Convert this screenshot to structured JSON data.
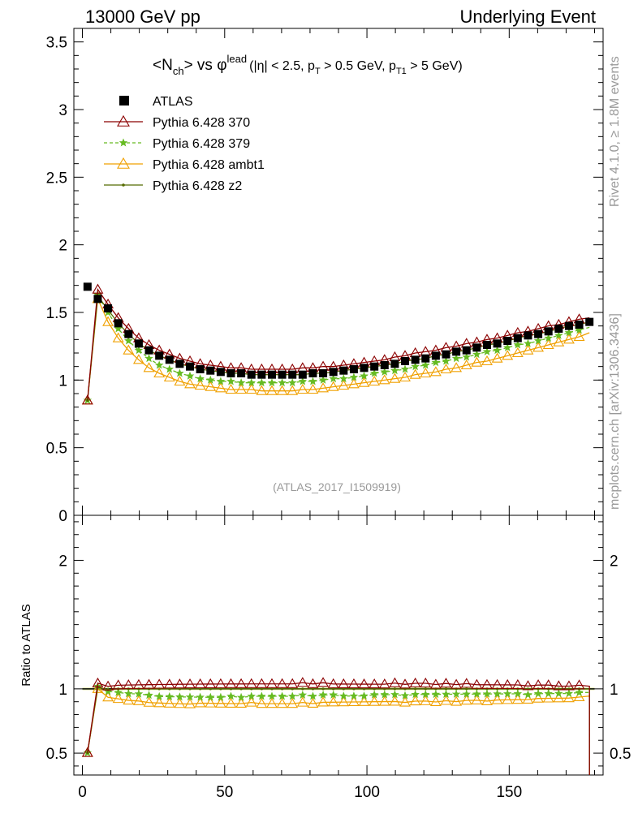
{
  "header": {
    "left": "13000 GeV pp",
    "right": "Underlying Event"
  },
  "title": {
    "main": "<N",
    "sub_ch": "ch",
    "vs": "> vs φ",
    "sup_lead": "lead",
    "cuts_a": "(|η| < 2.5, p",
    "sub_T": "T",
    "cuts_b": " > 0.5 GeV, p",
    "sub_T1": "T1",
    "cuts_c": " > 5 GeV)"
  },
  "side_labels": {
    "rivet": "Rivet 4.1.0, ≥ 1.8M events",
    "mcplots": "mcplots.cern.ch [arXiv:1306.3436]"
  },
  "analysis_tag": "(ATLAS_2017_I1509919)",
  "ratio_ylabel": "Ratio to ATLAS",
  "colors": {
    "atlas": "#000000",
    "p370": "#8b0000",
    "p379": "#66bb22",
    "ambt1": "#f0a000",
    "z2": "#556b00",
    "band": "#ccee66"
  },
  "chart_data": {
    "type": "line",
    "x_range": [
      -3,
      183
    ],
    "x_ticks": [
      0,
      50,
      100,
      150
    ],
    "main_ylim": [
      0,
      3.6
    ],
    "main_yticks": [
      "0",
      "0.5",
      "1",
      "1.5",
      "2",
      "2.5",
      "3",
      "3.5"
    ],
    "ratio_ylim": [
      0.33,
      2.35
    ],
    "ratio_yticks": [
      "0.5",
      "1",
      "2"
    ],
    "legend": [
      {
        "name": "ATLAS",
        "key": "atlas",
        "marker": "square"
      },
      {
        "name": "Pythia 6.428 370",
        "key": "p370",
        "marker": "open-triangle"
      },
      {
        "name": "Pythia 6.428 379",
        "key": "p379",
        "marker": "star"
      },
      {
        "name": "Pythia 6.428 ambt1",
        "key": "ambt1",
        "marker": "open-triangle"
      },
      {
        "name": "Pythia 6.428 z2",
        "key": "z2",
        "marker": "dot"
      }
    ],
    "series": {
      "atlas": {
        "x": [
          1.8,
          5.4,
          9,
          12.6,
          16.2,
          19.8,
          23.4,
          27,
          30.6,
          34.2,
          37.8,
          41.4,
          45,
          48.6,
          52.2,
          55.8,
          59.4,
          63,
          66.6,
          70.2,
          73.8,
          77.4,
          81,
          84.6,
          88.2,
          91.8,
          95.4,
          99,
          102.6,
          106.2,
          109.8,
          113.4,
          117,
          120.6,
          124.2,
          127.8,
          131.4,
          135,
          138.6,
          142.2,
          145.8,
          149.4,
          153,
          156.6,
          160.2,
          163.8,
          167.4,
          171,
          174.6,
          178.2
        ],
        "y": [
          1.69,
          1.6,
          1.53,
          1.42,
          1.34,
          1.27,
          1.22,
          1.18,
          1.15,
          1.12,
          1.1,
          1.08,
          1.07,
          1.06,
          1.05,
          1.05,
          1.04,
          1.04,
          1.04,
          1.04,
          1.04,
          1.04,
          1.05,
          1.05,
          1.06,
          1.07,
          1.08,
          1.09,
          1.1,
          1.11,
          1.12,
          1.14,
          1.15,
          1.16,
          1.18,
          1.19,
          1.21,
          1.22,
          1.24,
          1.26,
          1.27,
          1.29,
          1.31,
          1.33,
          1.34,
          1.36,
          1.38,
          1.4,
          1.41,
          1.43
        ]
      },
      "p370": [
        0.85,
        1.67,
        1.56,
        1.46,
        1.38,
        1.31,
        1.26,
        1.22,
        1.19,
        1.16,
        1.14,
        1.12,
        1.11,
        1.1,
        1.09,
        1.09,
        1.08,
        1.08,
        1.08,
        1.08,
        1.08,
        1.09,
        1.09,
        1.1,
        1.1,
        1.11,
        1.12,
        1.13,
        1.14,
        1.15,
        1.17,
        1.18,
        1.2,
        1.21,
        1.22,
        1.24,
        1.25,
        1.27,
        1.28,
        1.3,
        1.31,
        1.33,
        1.35,
        1.36,
        1.38,
        1.4,
        1.41,
        1.43,
        1.45,
        1.46
      ],
      "p379": [
        0.85,
        1.63,
        1.5,
        1.38,
        1.29,
        1.22,
        1.16,
        1.11,
        1.08,
        1.05,
        1.03,
        1.01,
        1.0,
        0.99,
        0.99,
        0.98,
        0.98,
        0.98,
        0.98,
        0.98,
        0.98,
        0.99,
        0.99,
        1.0,
        1.01,
        1.01,
        1.02,
        1.03,
        1.05,
        1.06,
        1.07,
        1.08,
        1.1,
        1.11,
        1.13,
        1.14,
        1.16,
        1.17,
        1.19,
        1.21,
        1.22,
        1.24,
        1.26,
        1.27,
        1.29,
        1.31,
        1.33,
        1.35,
        1.37,
        1.39
      ],
      "ambt1": [
        0.85,
        1.6,
        1.43,
        1.31,
        1.22,
        1.15,
        1.09,
        1.05,
        1.02,
        0.99,
        0.97,
        0.96,
        0.95,
        0.94,
        0.93,
        0.93,
        0.93,
        0.92,
        0.92,
        0.92,
        0.92,
        0.93,
        0.93,
        0.94,
        0.95,
        0.96,
        0.97,
        0.98,
        0.99,
        1.0,
        1.01,
        1.02,
        1.04,
        1.05,
        1.06,
        1.08,
        1.09,
        1.11,
        1.13,
        1.14,
        1.16,
        1.18,
        1.2,
        1.22,
        1.24,
        1.26,
        1.28,
        1.3,
        1.32,
        1.35
      ],
      "z2": [
        0.85,
        1.62,
        1.52,
        1.42,
        1.34,
        1.27,
        1.22,
        1.18,
        1.15,
        1.12,
        1.1,
        1.08,
        1.07,
        1.06,
        1.05,
        1.05,
        1.04,
        1.04,
        1.04,
        1.04,
        1.04,
        1.04,
        1.05,
        1.05,
        1.06,
        1.07,
        1.08,
        1.09,
        1.1,
        1.11,
        1.12,
        1.14,
        1.15,
        1.16,
        1.18,
        1.19,
        1.21,
        1.22,
        1.24,
        1.26,
        1.27,
        1.29,
        1.31,
        1.33,
        1.34,
        1.36,
        1.38,
        1.4,
        1.41,
        1.43
      ]
    }
  }
}
